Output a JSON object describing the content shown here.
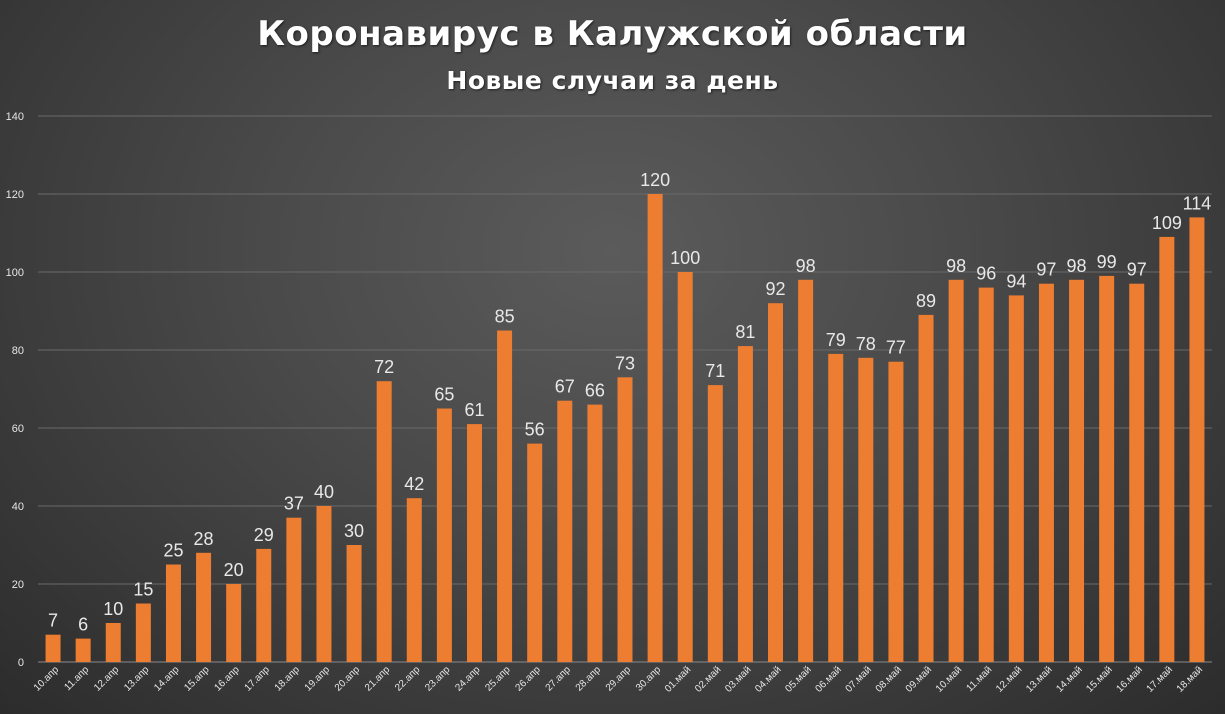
{
  "chart_data": {
    "type": "bar",
    "title": "Коронавирус в Калужской области",
    "subtitle": "Новые случаи за день",
    "categories": [
      "10.апр",
      "11.апр",
      "12.апр",
      "13.апр",
      "14.апр",
      "15.апр",
      "16.апр",
      "17.апр",
      "18.апр",
      "19.апр",
      "20.апр",
      "21.апр",
      "22.апр",
      "23.апр",
      "24.апр",
      "25.апр",
      "26.апр",
      "27.апр",
      "28.апр",
      "29.апр",
      "30.апр",
      "01.май",
      "02.май",
      "03.май",
      "04.май",
      "05.май",
      "06.май",
      "07.май",
      "08.май",
      "09.май",
      "10.май",
      "11.май",
      "12.май",
      "13.май",
      "14.май",
      "15.май",
      "16.май",
      "17.май",
      "18.май"
    ],
    "values": [
      7,
      6,
      10,
      15,
      25,
      28,
      20,
      29,
      37,
      40,
      30,
      72,
      42,
      65,
      61,
      85,
      56,
      67,
      66,
      73,
      120,
      100,
      71,
      81,
      92,
      98,
      79,
      78,
      77,
      89,
      98,
      96,
      94,
      97,
      98,
      99,
      97,
      109,
      114
    ],
    "yticks": [
      0,
      20,
      40,
      60,
      80,
      100,
      120,
      140
    ],
    "ylim": [
      0,
      140
    ],
    "grid": true,
    "bar_color": "#ed7d31"
  }
}
